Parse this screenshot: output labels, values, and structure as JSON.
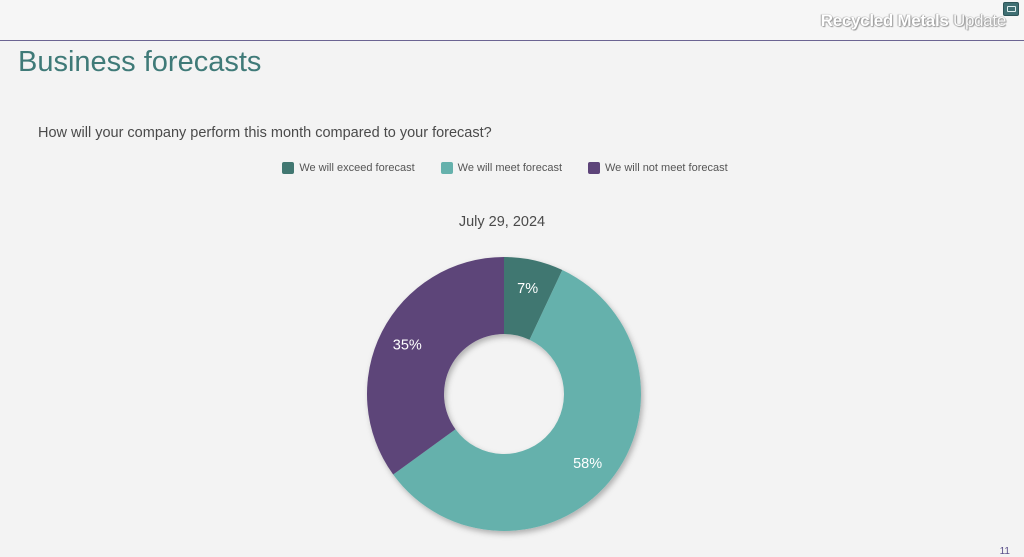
{
  "header": {
    "brand_bold": "Recycled Metals",
    "brand_light": "Update",
    "page_number": "11"
  },
  "page": {
    "title": "Business forecasts",
    "question": "How will your company perform this month compared to your forecast?"
  },
  "chart_data": {
    "type": "pie",
    "variant": "donut",
    "title": "July 29, 2024",
    "legend_position": "top",
    "categories": [
      "We will exceed forecast",
      "We will meet forecast",
      "We will not meet forecast"
    ],
    "values": [
      7,
      58,
      35
    ],
    "labels": [
      "7%",
      "58%",
      "35%"
    ],
    "colors": [
      "#417771",
      "#65b1ac",
      "#5d4479"
    ]
  }
}
